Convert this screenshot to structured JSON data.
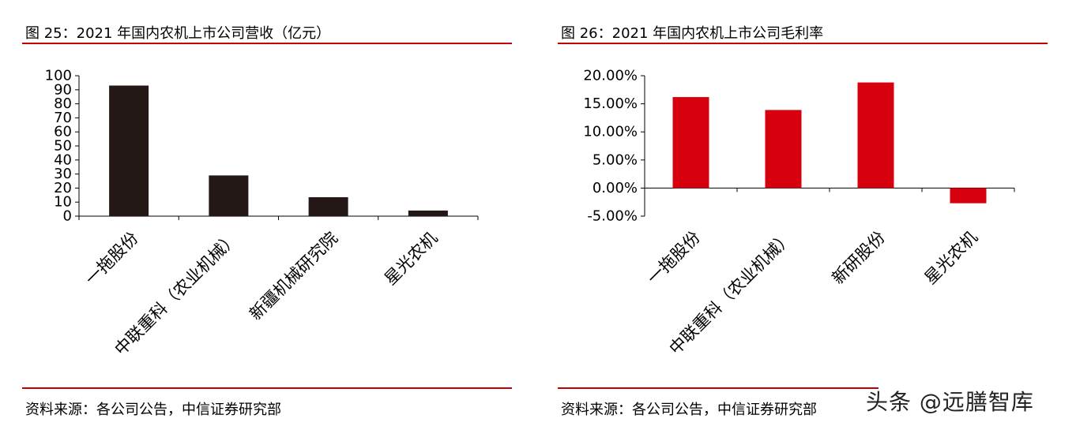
{
  "charts": {
    "left": {
      "fig_title": "图 25：2021 年国内农机上市公司营收（亿元）",
      "source": "资料来源：各公司公告，中信证券研究部"
    },
    "right": {
      "fig_title": "图 26：2021 年国内农机上市公司毛利率",
      "source": "资料来源：各公司公告，中信证券研究部"
    }
  },
  "watermark": "头条 @远膳智库",
  "colors": {
    "rule": "#c00000",
    "bar_left": "#231815",
    "bar_right": "#d7000f"
  },
  "chart_data": [
    {
      "type": "bar",
      "title": "图 25：2021 年国内农机上市公司营收（亿元）",
      "categories": [
        "一拖股份",
        "中联重科（农业机械）",
        "新疆机械研究院",
        "星光农机"
      ],
      "values": [
        93,
        29,
        13.5,
        4
      ],
      "ylim": [
        0,
        100
      ],
      "yticks": [
        0,
        10,
        20,
        30,
        40,
        50,
        60,
        70,
        80,
        90,
        100
      ],
      "ytick_labels": [
        "0",
        "10",
        "20",
        "30",
        "40",
        "50",
        "60",
        "70",
        "80",
        "90",
        "100"
      ],
      "xlabel": "",
      "ylabel": "",
      "grid": false,
      "legend": "none"
    },
    {
      "type": "bar",
      "title": "图 26：2021 年国内农机上市公司毛利率",
      "categories": [
        "一拖股份",
        "中联重科（农业机械）",
        "新研股份",
        "星光农机"
      ],
      "values": [
        16.2,
        13.9,
        18.8,
        -2.7
      ],
      "ylim": [
        -5,
        20
      ],
      "yticks": [
        -5,
        0,
        5,
        10,
        15,
        20
      ],
      "ytick_labels": [
        "-5.00%",
        "0.00%",
        "5.00%",
        "10.00%",
        "15.00%",
        "20.00%"
      ],
      "xlabel": "",
      "ylabel": "",
      "grid": false,
      "legend": "none"
    }
  ]
}
